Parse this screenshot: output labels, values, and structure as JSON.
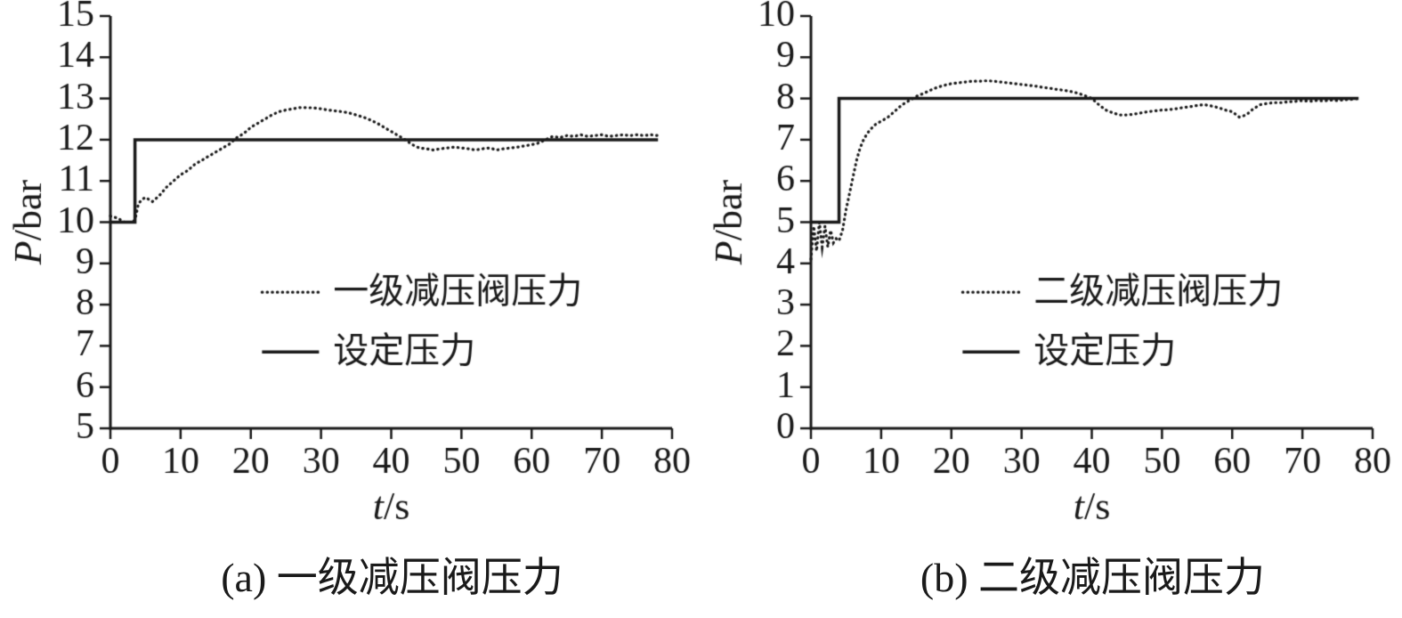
{
  "figure": {
    "background": "#ffffff",
    "line_color": "#1a1a1a"
  },
  "chart_data": [
    {
      "type": "line",
      "caption": "(a) 一级减压阀压力",
      "xlabel": "t/s",
      "ylabel": "P/bar",
      "xlabel_italic": "t",
      "xlabel_rest": "/s",
      "ylabel_italic": "P",
      "ylabel_rest": "/bar",
      "xlim": [
        0,
        80
      ],
      "ylim": [
        5,
        15
      ],
      "xticks": [
        0,
        10,
        20,
        30,
        40,
        50,
        60,
        70,
        80
      ],
      "yticks": [
        5,
        6,
        7,
        8,
        9,
        10,
        11,
        12,
        13,
        14,
        15
      ],
      "grid": false,
      "legend_position": "inside-lower-right",
      "legend": [
        {
          "label": "一级减压阀压力",
          "style": "dotted"
        },
        {
          "label": "设定压力",
          "style": "solid"
        }
      ],
      "series": [
        {
          "name": "一级减压阀压力",
          "style": "dotted",
          "points": [
            [
              0,
              10.15
            ],
            [
              1,
              10.1
            ],
            [
              2,
              10.0
            ],
            [
              3,
              10.0
            ],
            [
              3.5,
              10.05
            ],
            [
              4,
              10.45
            ],
            [
              4.5,
              10.55
            ],
            [
              5,
              10.6
            ],
            [
              6,
              10.5
            ],
            [
              7,
              10.65
            ],
            [
              8,
              10.85
            ],
            [
              9,
              11.0
            ],
            [
              10,
              11.15
            ],
            [
              11,
              11.25
            ],
            [
              12,
              11.4
            ],
            [
              13,
              11.5
            ],
            [
              14,
              11.6
            ],
            [
              15,
              11.7
            ],
            [
              16,
              11.8
            ],
            [
              17,
              11.9
            ],
            [
              18,
              12.05
            ],
            [
              19,
              12.15
            ],
            [
              20,
              12.3
            ],
            [
              21,
              12.4
            ],
            [
              22,
              12.5
            ],
            [
              23,
              12.6
            ],
            [
              24,
              12.68
            ],
            [
              25,
              12.72
            ],
            [
              26,
              12.75
            ],
            [
              27,
              12.78
            ],
            [
              28,
              12.78
            ],
            [
              29,
              12.77
            ],
            [
              30,
              12.75
            ],
            [
              31,
              12.72
            ],
            [
              32,
              12.7
            ],
            [
              33,
              12.68
            ],
            [
              34,
              12.65
            ],
            [
              35,
              12.6
            ],
            [
              36,
              12.55
            ],
            [
              37,
              12.48
            ],
            [
              38,
              12.4
            ],
            [
              39,
              12.3
            ],
            [
              40,
              12.2
            ],
            [
              41,
              12.1
            ],
            [
              42,
              12.0
            ],
            [
              43,
              11.88
            ],
            [
              44,
              11.8
            ],
            [
              45,
              11.78
            ],
            [
              46,
              11.75
            ],
            [
              47,
              11.78
            ],
            [
              48,
              11.8
            ],
            [
              49,
              11.82
            ],
            [
              50,
              11.8
            ],
            [
              51,
              11.78
            ],
            [
              52,
              11.75
            ],
            [
              53,
              11.78
            ],
            [
              54,
              11.8
            ],
            [
              55,
              11.75
            ],
            [
              56,
              11.78
            ],
            [
              57,
              11.8
            ],
            [
              58,
              11.82
            ],
            [
              59,
              11.85
            ],
            [
              60,
              11.88
            ],
            [
              61,
              11.92
            ],
            [
              62,
              12.0
            ],
            [
              63,
              12.08
            ],
            [
              64,
              12.05
            ],
            [
              65,
              12.1
            ],
            [
              66,
              12.08
            ],
            [
              67,
              12.12
            ],
            [
              68,
              12.08
            ],
            [
              69,
              12.1
            ],
            [
              70,
              12.12
            ],
            [
              71,
              12.08
            ],
            [
              72,
              12.1
            ],
            [
              73,
              12.12
            ],
            [
              74,
              12.1
            ],
            [
              75,
              12.12
            ],
            [
              76,
              12.1
            ],
            [
              77,
              12.12
            ],
            [
              78,
              12.1
            ]
          ]
        },
        {
          "name": "设定压力",
          "style": "solid",
          "points": [
            [
              0,
              10
            ],
            [
              3.5,
              10
            ],
            [
              3.5,
              12
            ],
            [
              78,
              12
            ]
          ]
        }
      ]
    },
    {
      "type": "line",
      "caption": "(b) 二级减压阀压力",
      "xlabel": "t/s",
      "ylabel": "P/bar",
      "xlabel_italic": "t",
      "xlabel_rest": "/s",
      "ylabel_italic": "P",
      "ylabel_rest": "/bar",
      "xlim": [
        0,
        80
      ],
      "ylim": [
        0,
        10
      ],
      "xticks": [
        0,
        10,
        20,
        30,
        40,
        50,
        60,
        70,
        80
      ],
      "yticks": [
        0,
        1,
        2,
        3,
        4,
        5,
        6,
        7,
        8,
        9,
        10
      ],
      "grid": false,
      "legend_position": "inside-lower-right",
      "legend": [
        {
          "label": "二级减压阀压力",
          "style": "dotted"
        },
        {
          "label": "设定压力",
          "style": "solid"
        }
      ],
      "series": [
        {
          "name": "二级减压阀压力",
          "style": "dotted",
          "points": [
            [
              0,
              4.1
            ],
            [
              0.4,
              4.9
            ],
            [
              0.8,
              4.3
            ],
            [
              1.2,
              5.0
            ],
            [
              1.6,
              4.4
            ],
            [
              2,
              4.9
            ],
            [
              2.4,
              4.4
            ],
            [
              2.8,
              4.8
            ],
            [
              3.2,
              4.5
            ],
            [
              3.6,
              4.6
            ],
            [
              4,
              4.55
            ],
            [
              4.5,
              4.8
            ],
            [
              5,
              5.3
            ],
            [
              5.5,
              5.7
            ],
            [
              6,
              6.1
            ],
            [
              6.5,
              6.5
            ],
            [
              7,
              6.8
            ],
            [
              7.5,
              7.0
            ],
            [
              8,
              7.15
            ],
            [
              9,
              7.35
            ],
            [
              10,
              7.45
            ],
            [
              11,
              7.55
            ],
            [
              12,
              7.7
            ],
            [
              13,
              7.85
            ],
            [
              14,
              7.95
            ],
            [
              15,
              8.05
            ],
            [
              16,
              8.12
            ],
            [
              17,
              8.2
            ],
            [
              18,
              8.27
            ],
            [
              19,
              8.32
            ],
            [
              20,
              8.36
            ],
            [
              21,
              8.38
            ],
            [
              22,
              8.4
            ],
            [
              23,
              8.42
            ],
            [
              24,
              8.42
            ],
            [
              25,
              8.43
            ],
            [
              26,
              8.42
            ],
            [
              27,
              8.4
            ],
            [
              28,
              8.38
            ],
            [
              29,
              8.36
            ],
            [
              30,
              8.34
            ],
            [
              31,
              8.32
            ],
            [
              32,
              8.3
            ],
            [
              33,
              8.27
            ],
            [
              34,
              8.25
            ],
            [
              35,
              8.22
            ],
            [
              36,
              8.2
            ],
            [
              37,
              8.17
            ],
            [
              38,
              8.13
            ],
            [
              39,
              8.07
            ],
            [
              40,
              8.0
            ],
            [
              41,
              7.85
            ],
            [
              42,
              7.72
            ],
            [
              43,
              7.65
            ],
            [
              44,
              7.6
            ],
            [
              45,
              7.6
            ],
            [
              46,
              7.62
            ],
            [
              47,
              7.65
            ],
            [
              48,
              7.68
            ],
            [
              49,
              7.7
            ],
            [
              50,
              7.72
            ],
            [
              51,
              7.73
            ],
            [
              52,
              7.75
            ],
            [
              53,
              7.78
            ],
            [
              54,
              7.8
            ],
            [
              55,
              7.83
            ],
            [
              56,
              7.85
            ],
            [
              57,
              7.82
            ],
            [
              58,
              7.78
            ],
            [
              59,
              7.72
            ],
            [
              60,
              7.68
            ],
            [
              61,
              7.55
            ],
            [
              62,
              7.6
            ],
            [
              63,
              7.75
            ],
            [
              64,
              7.85
            ],
            [
              65,
              7.88
            ],
            [
              66,
              7.9
            ],
            [
              67,
              7.9
            ],
            [
              68,
              7.92
            ],
            [
              69,
              7.93
            ],
            [
              70,
              7.95
            ],
            [
              71,
              7.93
            ],
            [
              72,
              7.95
            ],
            [
              73,
              7.94
            ],
            [
              74,
              7.96
            ],
            [
              75,
              7.95
            ],
            [
              76,
              7.97
            ],
            [
              77,
              7.98
            ],
            [
              78,
              8.0
            ]
          ]
        },
        {
          "name": "设定压力",
          "style": "solid",
          "points": [
            [
              0,
              5
            ],
            [
              4,
              5
            ],
            [
              4,
              8
            ],
            [
              78,
              8
            ]
          ]
        }
      ]
    }
  ]
}
